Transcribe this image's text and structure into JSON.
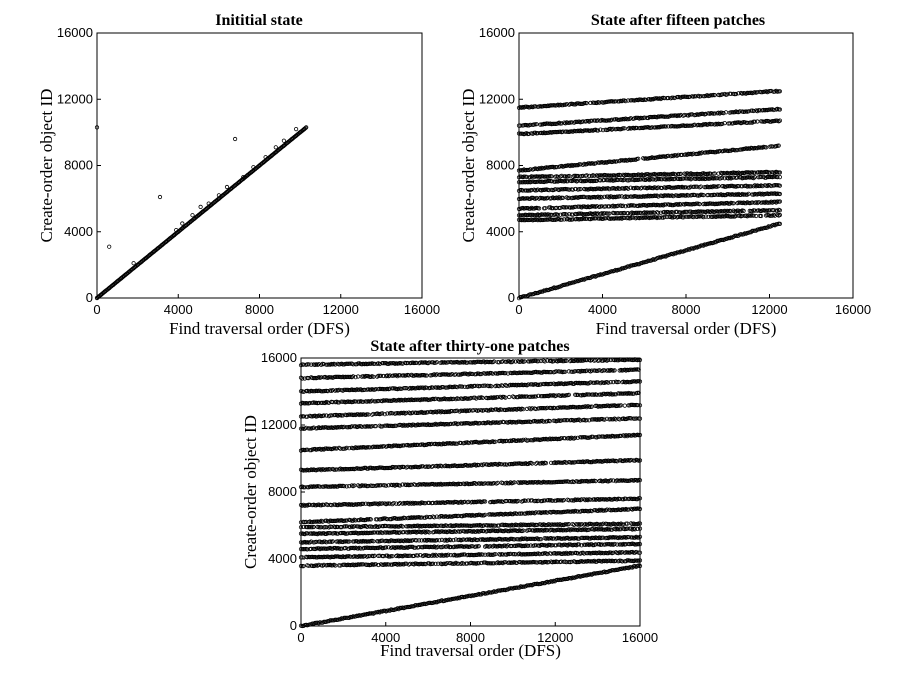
{
  "chart_data": [
    {
      "type": "scatter",
      "title": "Inititial state",
      "xlabel": "Find traversal order (DFS)",
      "ylabel": "Create-order object ID",
      "xlim": [
        0,
        16000
      ],
      "ylim": [
        0,
        16000
      ],
      "xticks": [
        "0",
        "4000",
        "8000",
        "12000",
        "16000"
      ],
      "yticks": [
        "0",
        "4000",
        "8000",
        "12000",
        "16000"
      ],
      "grid": false,
      "series": [
        {
          "marker": "o",
          "color": "#000000",
          "x": [
            0,
            200,
            400,
            600,
            800,
            1000,
            1200,
            1400,
            1600,
            1800,
            2000,
            2200,
            2400,
            2600,
            2800,
            3000,
            3200,
            3400,
            3600,
            3800,
            4000,
            4200,
            4400,
            4600,
            4800,
            5000,
            5200,
            5400,
            5600,
            5800,
            6000,
            6200,
            6400,
            6600,
            6800,
            7000,
            7200,
            7400,
            7600,
            7800,
            8000,
            8200,
            8400,
            8600,
            8800,
            9000,
            9200,
            9400,
            9600,
            9800,
            10000,
            10200,
            10300,
            0,
            600,
            1800,
            3100,
            3900,
            4200,
            4700,
            5100,
            5500,
            6000,
            6400,
            6800,
            7200,
            7700,
            8300,
            8800,
            9200,
            9800
          ],
          "y": [
            0,
            200,
            400,
            600,
            800,
            1000,
            1200,
            1400,
            1600,
            1800,
            2000,
            2200,
            2400,
            2600,
            2800,
            3000,
            3200,
            3400,
            3600,
            3800,
            4000,
            4200,
            4400,
            4600,
            4800,
            5000,
            5200,
            5400,
            5600,
            5800,
            6000,
            6200,
            6400,
            6600,
            6800,
            7000,
            7200,
            7400,
            7600,
            7800,
            8000,
            8200,
            8400,
            8600,
            8800,
            9000,
            9200,
            9400,
            9600,
            9800,
            10000,
            10200,
            10300,
            10300,
            3100,
            2100,
            6100,
            4100,
            4500,
            5000,
            5500,
            5700,
            6200,
            6700,
            9600,
            7300,
            7900,
            8500,
            9100,
            9500,
            10200
          ]
        }
      ]
    },
    {
      "type": "scatter",
      "title": "State after fifteen patches",
      "xlabel": "Find traversal order (DFS)",
      "ylabel": "Create-order object ID",
      "xlim": [
        0,
        16000
      ],
      "ylim": [
        0,
        16000
      ],
      "xticks": [
        "0",
        "4000",
        "8000",
        "12000",
        "16000"
      ],
      "yticks": [
        "0",
        "4000",
        "8000",
        "12000",
        "16000"
      ],
      "grid": false,
      "series": [
        {
          "marker": "o",
          "color": "#000000",
          "bands": [
            {
              "x": [
                0,
                12500
              ],
              "y": [
                0,
                4500
              ]
            },
            {
              "x": [
                0,
                12500
              ],
              "y": [
                4700,
                5000
              ]
            },
            {
              "x": [
                0,
                12500
              ],
              "y": [
                5000,
                5300
              ]
            },
            {
              "x": [
                0,
                12500
              ],
              "y": [
                5400,
                5800
              ]
            },
            {
              "x": [
                0,
                12500
              ],
              "y": [
                6000,
                6300
              ]
            },
            {
              "x": [
                0,
                12500
              ],
              "y": [
                6500,
                6800
              ]
            },
            {
              "x": [
                0,
                12500
              ],
              "y": [
                7000,
                7300
              ]
            },
            {
              "x": [
                0,
                12500
              ],
              "y": [
                7300,
                7600
              ]
            },
            {
              "x": [
                0,
                12500
              ],
              "y": [
                7700,
                9200
              ]
            },
            {
              "x": [
                0,
                12500
              ],
              "y": [
                9900,
                10700
              ]
            },
            {
              "x": [
                0,
                12500
              ],
              "y": [
                10400,
                11400
              ]
            },
            {
              "x": [
                0,
                12500
              ],
              "y": [
                11500,
                12500
              ]
            }
          ]
        }
      ]
    },
    {
      "type": "scatter",
      "title": "State after thirty-one patches",
      "xlabel": "Find traversal order (DFS)",
      "ylabel": "Create-order object ID",
      "xlim": [
        0,
        16000
      ],
      "ylim": [
        0,
        16000
      ],
      "xticks": [
        "0",
        "4000",
        "8000",
        "12000",
        "16000"
      ],
      "yticks": [
        "0",
        "4000",
        "8000",
        "12000",
        "16000"
      ],
      "grid": false,
      "series": [
        {
          "marker": "o",
          "color": "#000000",
          "bands": [
            {
              "x": [
                0,
                16000
              ],
              "y": [
                0,
                3600
              ]
            },
            {
              "x": [
                0,
                16000
              ],
              "y": [
                3600,
                3900
              ]
            },
            {
              "x": [
                0,
                16000
              ],
              "y": [
                4100,
                4400
              ]
            },
            {
              "x": [
                0,
                16000
              ],
              "y": [
                4600,
                4900
              ]
            },
            {
              "x": [
                0,
                16000
              ],
              "y": [
                5000,
                5300
              ]
            },
            {
              "x": [
                0,
                16000
              ],
              "y": [
                5500,
                5800
              ]
            },
            {
              "x": [
                0,
                16000
              ],
              "y": [
                5900,
                6100
              ]
            },
            {
              "x": [
                0,
                16000
              ],
              "y": [
                6200,
                7000
              ]
            },
            {
              "x": [
                0,
                16000
              ],
              "y": [
                7200,
                7600
              ]
            },
            {
              "x": [
                0,
                16000
              ],
              "y": [
                8300,
                8700
              ]
            },
            {
              "x": [
                0,
                16000
              ],
              "y": [
                9300,
                9900
              ]
            },
            {
              "x": [
                0,
                16000
              ],
              "y": [
                10500,
                11400
              ]
            },
            {
              "x": [
                0,
                16000
              ],
              "y": [
                11800,
                12400
              ]
            },
            {
              "x": [
                0,
                16000
              ],
              "y": [
                12500,
                13200
              ]
            },
            {
              "x": [
                0,
                16000
              ],
              "y": [
                13300,
                13900
              ]
            },
            {
              "x": [
                0,
                16000
              ],
              "y": [
                14000,
                14600
              ]
            },
            {
              "x": [
                0,
                16000
              ],
              "y": [
                14800,
                15300
              ]
            },
            {
              "x": [
                0,
                16000
              ],
              "y": [
                15600,
                15900
              ]
            }
          ]
        }
      ]
    }
  ]
}
